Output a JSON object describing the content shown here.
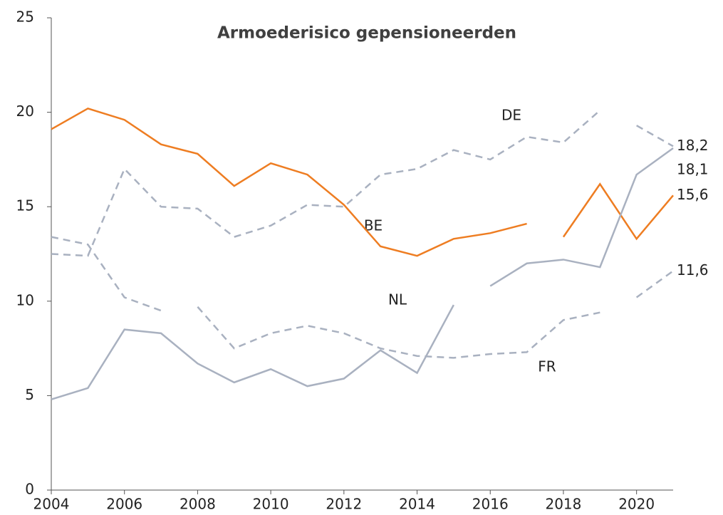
{
  "chart_data": {
    "type": "line",
    "title": "Armoederisico gepensioneerden",
    "xlim": [
      2004,
      2021
    ],
    "xticks": [
      2004,
      2006,
      2008,
      2010,
      2012,
      2014,
      2016,
      2018,
      2020
    ],
    "ylim": [
      0,
      25
    ],
    "yticks": [
      0,
      5,
      10,
      15,
      20,
      25
    ],
    "grid": false,
    "annotations": [
      "DE",
      "BE",
      "NL",
      "FR"
    ],
    "series": [
      {
        "color": "#ee7d22",
        "dashed": false,
        "x": [
          2004,
          2005,
          2006,
          2007,
          2008,
          2009,
          2010,
          2011,
          2012,
          2013,
          2014,
          2015,
          2016,
          2017
        ],
        "values": [
          19.1,
          20.2,
          19.6,
          18.3,
          17.8,
          16.1,
          17.3,
          16.7,
          15.1,
          12.9,
          12.4,
          13.3,
          13.6,
          14.1
        ]
      },
      {
        "color": "#ee7d22",
        "dashed": false,
        "x": [
          2018,
          2019,
          2020,
          2021
        ],
        "values": [
          13.4,
          16.2,
          13.3,
          15.6
        ],
        "value_labels": [
          null,
          null,
          null,
          "15,6"
        ]
      },
      {
        "color": "#a9b1c0",
        "dashed": true,
        "x": [
          2004,
          2005,
          2006,
          2007,
          2008,
          2009,
          2010,
          2011,
          2012,
          2013,
          2014,
          2015,
          2016,
          2017,
          2018,
          2019
        ],
        "values": [
          12.5,
          12.4,
          17.0,
          15.0,
          14.9,
          13.4,
          14.0,
          15.1,
          15.0,
          16.7,
          17.0,
          18.0,
          17.5,
          18.7,
          18.4,
          20.1
        ]
      },
      {
        "color": "#a9b1c0",
        "dashed": true,
        "x": [
          2020,
          2021
        ],
        "values": [
          19.3,
          18.2
        ],
        "value_labels": [
          null,
          "18,2"
        ]
      },
      {
        "color": "#a9b1c0",
        "dashed": true,
        "x": [
          2004,
          2005,
          2006,
          2007
        ],
        "values": [
          13.4,
          13.0,
          10.2,
          9.5
        ]
      },
      {
        "color": "#a9b1c0",
        "dashed": true,
        "x": [
          2008,
          2009,
          2010,
          2011,
          2012,
          2013,
          2014,
          2015,
          2016,
          2017,
          2018,
          2019
        ],
        "values": [
          9.7,
          7.5,
          8.3,
          8.7,
          8.3,
          7.5,
          7.1,
          7.0,
          7.2,
          7.3,
          9.0,
          9.4
        ]
      },
      {
        "color": "#a9b1c0",
        "dashed": true,
        "x": [
          2020,
          2021
        ],
        "values": [
          10.2,
          11.6
        ],
        "value_labels": [
          null,
          "11,6"
        ]
      },
      {
        "color": "#a9b1c0",
        "dashed": false,
        "x": [
          2004,
          2005,
          2006,
          2007,
          2008,
          2009,
          2010,
          2011,
          2012,
          2013,
          2014,
          2015
        ],
        "values": [
          4.8,
          5.4,
          8.5,
          8.3,
          6.7,
          5.7,
          6.4,
          5.5,
          5.9,
          7.4,
          6.2,
          9.8
        ]
      },
      {
        "color": "#a9b1c0",
        "dashed": false,
        "x": [
          2016,
          2017,
          2018,
          2019,
          2020,
          2021
        ],
        "values": [
          10.8,
          12.0,
          12.2,
          11.8,
          16.7,
          18.1
        ],
        "value_labels": [
          null,
          null,
          null,
          null,
          null,
          "18,1"
        ]
      }
    ]
  }
}
